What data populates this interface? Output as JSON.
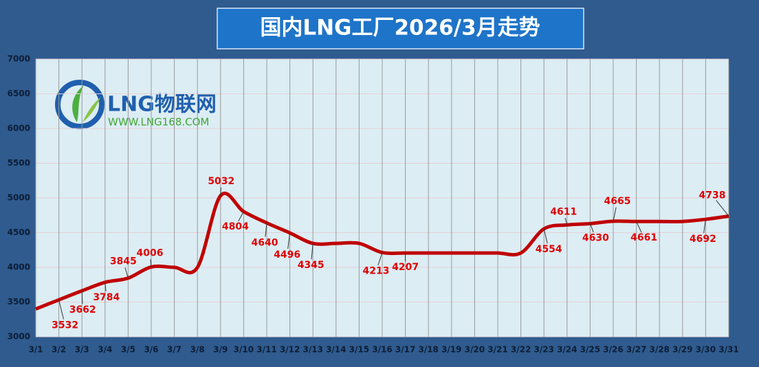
{
  "chart_data": {
    "type": "line",
    "title": "国内LNG工厂2026/3月走势",
    "watermark": [
      "LNG物联网",
      "WWW.LNG168.COM"
    ],
    "categories": [
      "3/1",
      "3/2",
      "3/3",
      "3/4",
      "3/5",
      "3/6",
      "3/7",
      "3/8",
      "3/9",
      "3/10",
      "3/11",
      "3/12",
      "3/13",
      "3/14",
      "3/15",
      "3/16",
      "3/17",
      "3/18",
      "3/19",
      "3/20",
      "3/21",
      "3/22",
      "3/23",
      "3/24",
      "3/25",
      "3/26",
      "3/27",
      "3/28",
      "3/29",
      "3/30",
      "3/31"
    ],
    "series": [
      {
        "name": "LNG",
        "color": "#c00000",
        "values": [
          3400,
          3532,
          3662,
          3784,
          3845,
          4006,
          4000,
          4000,
          5032,
          4804,
          4640,
          4496,
          4345,
          4345,
          4345,
          4213,
          4207,
          4207,
          4207,
          4207,
          4207,
          4207,
          4554,
          4611,
          4630,
          4665,
          4661,
          4661,
          4661,
          4692,
          4738
        ],
        "value_labels": [
          null,
          "3532",
          "3662",
          "3784",
          "3845",
          "4006",
          null,
          null,
          "5032",
          "4804",
          "4640",
          "4496",
          "4345",
          null,
          null,
          "4213",
          "4207",
          null,
          null,
          null,
          null,
          null,
          "4554",
          "4611",
          "4630",
          "4665",
          "4661",
          null,
          null,
          "4692",
          "4738"
        ]
      }
    ],
    "ylim": [
      3000,
      7000
    ],
    "yticks": [
      3000,
      3500,
      4000,
      4500,
      5000,
      5500,
      6000,
      6500,
      7000
    ],
    "grid": true
  }
}
